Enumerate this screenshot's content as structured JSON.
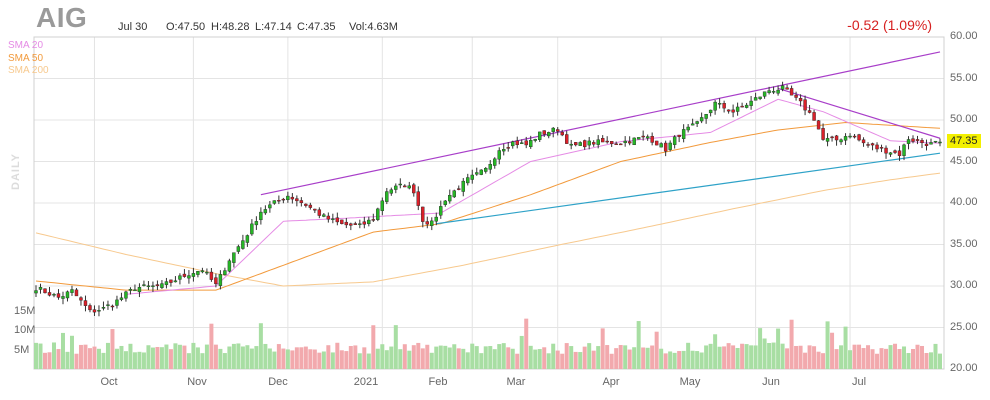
{
  "header": {
    "ticker": "AIG",
    "date": "Jul 30",
    "open": "O:47.50",
    "high": "H:48.28",
    "low": "L:47.14",
    "close": "C:47.35",
    "volume": "Vol:4.63M",
    "change": "-0.52 (1.09%)"
  },
  "legend": [
    {
      "label": "SMA 20",
      "color": "#e58be5"
    },
    {
      "label": "SMA 50",
      "color": "#f29a3c"
    },
    {
      "label": "SMA 200",
      "color": "#f7c98e"
    }
  ],
  "side_label": "DAILY",
  "last_price_label": "47.35",
  "colors": {
    "up": "#26b526",
    "down": "#d9202a",
    "vol_up": "#a8dea3",
    "vol_down": "#f2a9ad",
    "grid": "#e4e4e4",
    "channel_top": "#a83ec9",
    "channel_bottom": "#2ea2c8",
    "price_box": "#f3f000"
  },
  "chart_data": {
    "type": "candlestick",
    "title": "AIG",
    "ylim": [
      20,
      60
    ],
    "y_ticks": [
      "20.00",
      "25.00",
      "30.00",
      "35.00",
      "40.00",
      "45.00",
      "50.00",
      "55.00",
      "60.00"
    ],
    "volume_ticks": [
      "5M",
      "10M",
      "15M"
    ],
    "x_ticks": [
      "Oct",
      "Nov",
      "Dec",
      "2021",
      "Feb",
      "Mar",
      "Apr",
      "May",
      "Jun",
      "Jul"
    ],
    "period": "2020-09-10 to 2021-07-30",
    "price_path_anchors": [
      [
        0,
        29.8
      ],
      [
        5,
        28.6
      ],
      [
        8,
        29.4
      ],
      [
        12,
        26.9
      ],
      [
        15,
        27.3
      ],
      [
        18,
        28.2
      ],
      [
        22,
        29.8
      ],
      [
        28,
        30.0
      ],
      [
        34,
        31.5
      ],
      [
        37,
        32.0
      ],
      [
        40,
        30.1
      ],
      [
        43,
        33.2
      ],
      [
        47,
        36.3
      ],
      [
        50,
        39.0
      ],
      [
        53,
        40.0
      ],
      [
        56,
        40.9
      ],
      [
        60,
        39.8
      ],
      [
        64,
        38.3
      ],
      [
        68,
        37.4
      ],
      [
        72,
        37.2
      ],
      [
        75,
        38.1
      ],
      [
        78,
        41.5
      ],
      [
        82,
        42.2
      ],
      [
        84,
        41.5
      ],
      [
        86,
        38.0
      ],
      [
        88,
        37.5
      ],
      [
        91,
        40.5
      ],
      [
        96,
        42.8
      ],
      [
        100,
        44.0
      ],
      [
        103,
        46.5
      ],
      [
        106,
        47.3
      ],
      [
        109,
        47.0
      ],
      [
        112,
        48.3
      ],
      [
        116,
        48.9
      ],
      [
        119,
        46.8
      ],
      [
        124,
        47.3
      ],
      [
        130,
        47.3
      ],
      [
        136,
        48.0
      ],
      [
        140,
        46.5
      ],
      [
        143,
        48.3
      ],
      [
        147,
        49.5
      ],
      [
        151,
        52.0
      ],
      [
        155,
        51.0
      ],
      [
        159,
        52.2
      ],
      [
        163,
        53.6
      ],
      [
        166,
        53.8
      ],
      [
        170,
        52.0
      ],
      [
        173,
        50.2
      ],
      [
        175,
        47.6
      ],
      [
        178,
        47.6
      ],
      [
        181,
        48.3
      ],
      [
        184,
        47.2
      ],
      [
        187,
        46.6
      ],
      [
        190,
        46.2
      ],
      [
        192,
        45.9
      ],
      [
        194,
        47.8
      ],
      [
        196,
        47.4
      ],
      [
        199,
        47.1
      ],
      [
        201,
        47.35
      ]
    ],
    "sma20_anchors": [
      [
        20,
        29.0
      ],
      [
        40,
        30.0
      ],
      [
        55,
        37.8
      ],
      [
        70,
        38.2
      ],
      [
        90,
        38.8
      ],
      [
        110,
        45.0
      ],
      [
        130,
        47.4
      ],
      [
        150,
        48.5
      ],
      [
        165,
        52.5
      ],
      [
        175,
        51.0
      ],
      [
        190,
        47.5
      ],
      [
        201,
        47.2
      ]
    ],
    "sma50_anchors": [
      [
        0,
        30.6
      ],
      [
        20,
        29.5
      ],
      [
        40,
        29.5
      ],
      [
        55,
        32.5
      ],
      [
        75,
        36.5
      ],
      [
        90,
        37.5
      ],
      [
        110,
        41.0
      ],
      [
        130,
        45.0
      ],
      [
        150,
        47.3
      ],
      [
        165,
        48.8
      ],
      [
        180,
        49.7
      ],
      [
        201,
        49.0
      ]
    ],
    "sma200_anchors": [
      [
        0,
        36.4
      ],
      [
        20,
        33.8
      ],
      [
        40,
        31.5
      ],
      [
        55,
        30.0
      ],
      [
        75,
        30.5
      ],
      [
        95,
        32.5
      ],
      [
        115,
        34.8
      ],
      [
        135,
        37.0
      ],
      [
        155,
        39.3
      ],
      [
        175,
        41.5
      ],
      [
        190,
        42.8
      ],
      [
        201,
        43.6
      ]
    ],
    "trendlines": [
      {
        "name": "channel-top",
        "x0": 50,
        "y0": 41.0,
        "x1": 201,
        "y1": 58.2
      },
      {
        "name": "channel-bottom",
        "x0": 89,
        "y0": 37.5,
        "x1": 201,
        "y1": 46.0
      }
    ],
    "last_price": 47.35
  }
}
